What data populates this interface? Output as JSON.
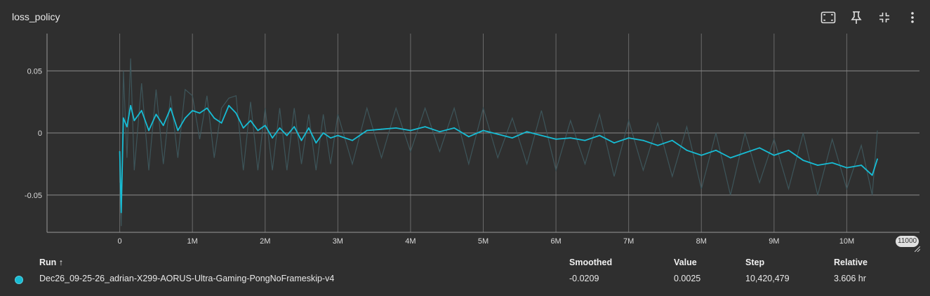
{
  "card": {
    "title": "loss_policy",
    "toolbar": [
      {
        "name": "fit-domain-icon"
      },
      {
        "name": "pin-icon"
      },
      {
        "name": "collapse-icon"
      },
      {
        "name": "more-vert-icon"
      }
    ]
  },
  "table": {
    "headers": {
      "run": "Run ↑",
      "smoothed": "Smoothed",
      "value": "Value",
      "step": "Step",
      "relative": "Relative"
    },
    "row": {
      "run": "Dec26_09-25-26_adrian-X299-AORUS-Ultra-Gaming-PongNoFrameskip-v4",
      "smoothed": "-0.0209",
      "value": "0.0025",
      "step": "10,420,479",
      "relative": "3.606 hr",
      "color": "#17bcd4"
    }
  },
  "chart_data": {
    "type": "line",
    "title": "loss_policy",
    "xlim": [
      -1000000,
      11000000
    ],
    "ylim": [
      -0.08,
      0.08
    ],
    "x_ticks": [
      0,
      1000000,
      2000000,
      3000000,
      4000000,
      5000000,
      6000000,
      7000000,
      8000000,
      9000000,
      10000000
    ],
    "x_tick_labels": [
      "0",
      "1M",
      "2M",
      "3M",
      "4M",
      "5M",
      "6M",
      "7M",
      "8M",
      "9M",
      "10M"
    ],
    "x_end_label": "11000",
    "y_ticks": [
      -0.05,
      0,
      0.05
    ],
    "y_tick_labels": [
      "-0.05",
      "0",
      "0.05"
    ],
    "grid": true,
    "series": [
      {
        "name": "Dec26_09-25-26_adrian-X299-AORUS-Ultra-Gaming-PongNoFrameskip-v4",
        "color": "#17bcd4",
        "raw_color": "#3f5a5f",
        "x": [
          0,
          20000,
          50000,
          100000,
          150000,
          200000,
          300000,
          400000,
          500000,
          600000,
          700000,
          800000,
          900000,
          1000000,
          1100000,
          1200000,
          1300000,
          1400000,
          1500000,
          1600000,
          1700000,
          1800000,
          1900000,
          2000000,
          2100000,
          2200000,
          2300000,
          2400000,
          2500000,
          2600000,
          2700000,
          2800000,
          2900000,
          3000000,
          3200000,
          3400000,
          3600000,
          3800000,
          4000000,
          4200000,
          4400000,
          4600000,
          4800000,
          5000000,
          5200000,
          5400000,
          5600000,
          5800000,
          6000000,
          6200000,
          6400000,
          6600000,
          6800000,
          7000000,
          7200000,
          7400000,
          7600000,
          7800000,
          8000000,
          8200000,
          8400000,
          8600000,
          8800000,
          9000000,
          9200000,
          9400000,
          9600000,
          9800000,
          10000000,
          10200000,
          10350000,
          10420479
        ],
        "smoothed": [
          -0.015,
          -0.064,
          0.012,
          0.005,
          0.022,
          0.01,
          0.018,
          0.002,
          0.015,
          0.006,
          0.02,
          0.002,
          0.012,
          0.018,
          0.016,
          0.02,
          0.012,
          0.008,
          0.022,
          0.016,
          0.004,
          0.01,
          0.002,
          0.006,
          -0.004,
          0.004,
          -0.002,
          0.005,
          -0.006,
          0.004,
          -0.008,
          0.0,
          -0.004,
          -0.002,
          -0.006,
          0.002,
          0.003,
          0.004,
          0.002,
          0.005,
          0.001,
          0.004,
          -0.003,
          0.002,
          -0.001,
          -0.004,
          0.001,
          -0.002,
          -0.005,
          -0.004,
          -0.006,
          -0.002,
          -0.008,
          -0.004,
          -0.006,
          -0.01,
          -0.006,
          -0.014,
          -0.018,
          -0.014,
          -0.02,
          -0.016,
          -0.012,
          -0.018,
          -0.014,
          -0.022,
          -0.026,
          -0.024,
          -0.028,
          -0.026,
          -0.034,
          -0.021
        ],
        "raw": [
          -0.04,
          -0.075,
          0.05,
          -0.02,
          0.06,
          -0.03,
          0.04,
          -0.03,
          0.035,
          -0.025,
          0.03,
          -0.02,
          0.035,
          0.03,
          -0.005,
          0.03,
          -0.02,
          0.02,
          0.028,
          0.03,
          -0.03,
          0.025,
          -0.03,
          0.02,
          -0.03,
          0.02,
          -0.03,
          0.02,
          -0.025,
          0.015,
          -0.03,
          0.015,
          -0.025,
          0.015,
          -0.025,
          0.02,
          -0.02,
          0.02,
          -0.015,
          0.02,
          -0.015,
          0.02,
          -0.025,
          0.02,
          -0.02,
          0.012,
          -0.025,
          0.018,
          -0.03,
          0.01,
          -0.025,
          0.015,
          -0.035,
          0.01,
          -0.03,
          0.008,
          -0.035,
          0.005,
          -0.045,
          0.0,
          -0.05,
          0.0,
          -0.04,
          -0.005,
          -0.045,
          0.0,
          -0.05,
          -0.005,
          -0.045,
          -0.01,
          -0.05,
          0.002
        ]
      }
    ]
  }
}
